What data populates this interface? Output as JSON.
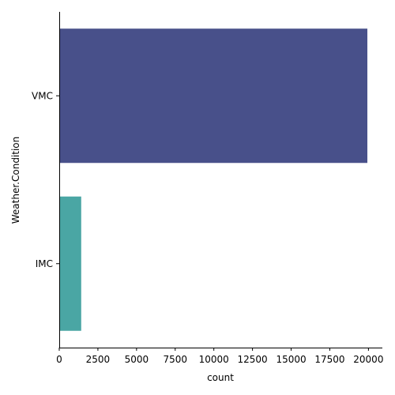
{
  "chart_data": {
    "type": "bar",
    "orientation": "horizontal",
    "categories": [
      "VMC",
      "IMC"
    ],
    "values": [
      19930,
      1420
    ],
    "colors": [
      "#48508a",
      "#4aa6a4"
    ],
    "title": "",
    "xlabel": "count",
    "ylabel": "Weather.Condition",
    "xlim": [
      0,
      20900
    ],
    "xticks": [
      0,
      2500,
      5000,
      7500,
      10000,
      12500,
      15000,
      17500,
      20000
    ],
    "grid": false,
    "legend": "none"
  }
}
